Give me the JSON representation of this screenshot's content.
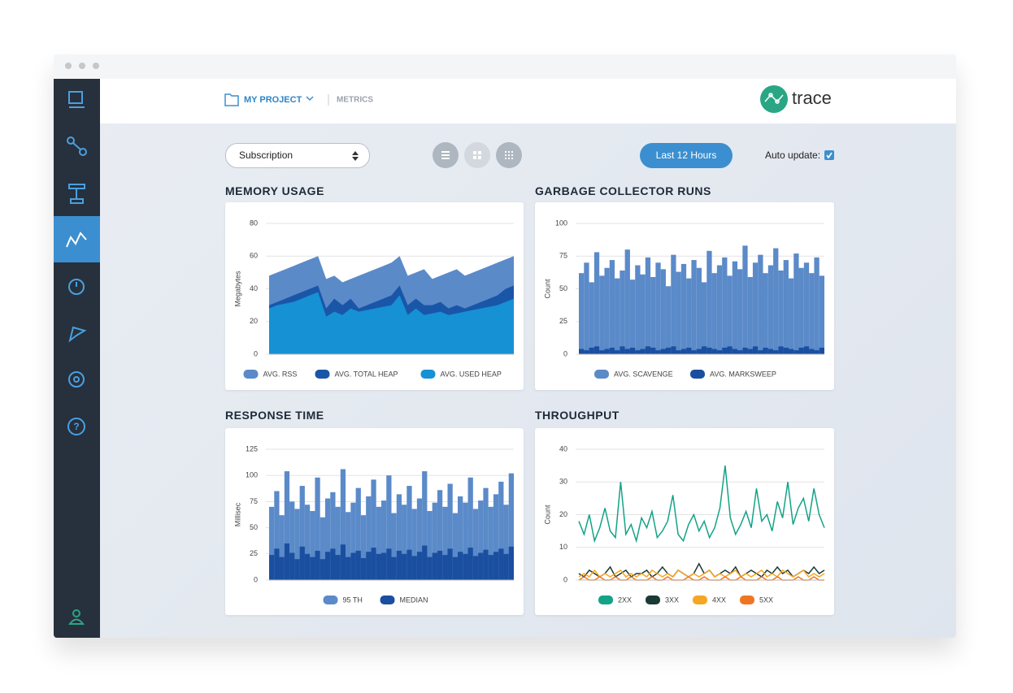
{
  "header": {
    "project": "MY PROJECT",
    "page": "METRICS",
    "brand": "trace"
  },
  "toolbar": {
    "select": "Subscription",
    "range_button": "Last 12 Hours",
    "auto_update": "Auto update:"
  },
  "chart_data": [
    {
      "type": "area",
      "title": "MEMORY USAGE",
      "y_label": "Megabytes",
      "ylim": [
        0,
        80
      ],
      "yticks": [
        0,
        20,
        40,
        60,
        80
      ],
      "grid": true,
      "series": [
        {
          "name": "AVG. RSS",
          "color": "#5b8ac9",
          "values": [
            48,
            50,
            52,
            54,
            56,
            58,
            60,
            46,
            48,
            44,
            46,
            48,
            50,
            52,
            54,
            56,
            60,
            48,
            50,
            52,
            46,
            48,
            50,
            52,
            48,
            50,
            52,
            54,
            56,
            58,
            60
          ]
        },
        {
          "name": "AVG. TOTAL HEAP",
          "color": "#1a56a8",
          "values": [
            30,
            32,
            34,
            36,
            38,
            40,
            42,
            28,
            34,
            30,
            34,
            28,
            30,
            32,
            34,
            36,
            42,
            30,
            34,
            30,
            30,
            32,
            28,
            30,
            28,
            30,
            32,
            34,
            36,
            40,
            42
          ]
        },
        {
          "name": "AVG. USED HEAP",
          "color": "#1591d4",
          "values": [
            28,
            30,
            31,
            32,
            34,
            36,
            38,
            23,
            26,
            24,
            28,
            26,
            27,
            28,
            29,
            30,
            36,
            24,
            28,
            24,
            25,
            26,
            24,
            25,
            26,
            27,
            28,
            29,
            30,
            32,
            34
          ]
        }
      ]
    },
    {
      "type": "bar",
      "title": "GARBAGE COLLECTOR RUNS",
      "y_label": "Count",
      "ylim": [
        0,
        100
      ],
      "yticks": [
        0,
        25,
        50,
        75,
        100
      ],
      "grid": true,
      "series": [
        {
          "name": "AVG. SCAVENGE",
          "color": "#5b8ac9",
          "values": [
            62,
            70,
            55,
            78,
            60,
            66,
            72,
            58,
            64,
            80,
            57,
            68,
            61,
            74,
            59,
            70,
            65,
            52,
            76,
            63,
            69,
            58,
            72,
            66,
            55,
            79,
            62,
            68,
            74,
            60,
            71,
            65,
            83,
            59,
            70,
            76,
            62,
            68,
            81,
            64,
            72,
            58,
            77,
            66,
            70,
            62,
            74,
            60
          ]
        },
        {
          "name": "AVG. MARKSWEEP",
          "color": "#1a4fa0",
          "values": [
            4,
            3,
            5,
            6,
            3,
            4,
            5,
            3,
            6,
            4,
            5,
            3,
            4,
            6,
            5,
            3,
            4,
            5,
            6,
            3,
            4,
            5,
            3,
            4,
            6,
            5,
            4,
            3,
            5,
            6,
            4,
            3,
            5,
            4,
            6,
            3,
            5,
            4,
            3,
            6,
            5,
            4,
            3,
            5,
            6,
            4,
            3,
            5
          ]
        }
      ]
    },
    {
      "type": "bar",
      "title": "RESPONSE TIME",
      "y_label": "Millisec",
      "ylim": [
        0,
        125
      ],
      "yticks": [
        0,
        25,
        50,
        75,
        100,
        125
      ],
      "grid": true,
      "series": [
        {
          "name": "95 TH",
          "color": "#5b8ac9",
          "values": [
            70,
            85,
            62,
            104,
            75,
            68,
            90,
            72,
            66,
            98,
            60,
            78,
            84,
            70,
            106,
            65,
            74,
            88,
            62,
            80,
            96,
            70,
            76,
            100,
            64,
            82,
            72,
            90,
            68,
            78,
            104,
            66,
            74,
            86,
            70,
            92,
            64,
            80,
            74,
            98,
            68,
            76,
            88,
            70,
            82,
            94,
            72,
            102
          ]
        },
        {
          "name": "MEDIAN",
          "color": "#1a4fa0",
          "values": [
            24,
            30,
            22,
            35,
            26,
            20,
            32,
            25,
            22,
            28,
            20,
            27,
            30,
            24,
            34,
            22,
            26,
            28,
            21,
            27,
            31,
            25,
            26,
            30,
            22,
            28,
            25,
            29,
            23,
            27,
            33,
            22,
            26,
            28,
            24,
            30,
            22,
            27,
            25,
            31,
            23,
            26,
            29,
            24,
            27,
            30,
            25,
            32
          ]
        }
      ]
    },
    {
      "type": "line",
      "title": "THROUGHPUT",
      "y_label": "Count",
      "ylim": [
        0,
        40
      ],
      "yticks": [
        0,
        10,
        20,
        30,
        40
      ],
      "grid": true,
      "series": [
        {
          "name": "2XX",
          "color": "#13a386",
          "values": [
            18,
            14,
            20,
            12,
            16,
            22,
            15,
            13,
            30,
            14,
            17,
            12,
            19,
            16,
            21,
            13,
            15,
            18,
            26,
            14,
            12,
            17,
            20,
            15,
            18,
            13,
            16,
            22,
            35,
            19,
            14,
            17,
            21,
            16,
            28,
            18,
            20,
            15,
            24,
            19,
            30,
            17,
            22,
            25,
            18,
            28,
            20,
            16
          ]
        },
        {
          "name": "3XX",
          "color": "#1c3a34",
          "values": [
            2,
            1,
            3,
            2,
            1,
            2,
            4,
            1,
            2,
            3,
            1,
            2,
            2,
            3,
            1,
            2,
            4,
            2,
            1,
            3,
            2,
            1,
            2,
            5,
            2,
            3,
            1,
            2,
            3,
            2,
            4,
            1,
            2,
            3,
            2,
            1,
            3,
            2,
            4,
            2,
            3,
            1,
            2,
            3,
            2,
            4,
            2,
            3
          ]
        },
        {
          "name": "4XX",
          "color": "#f5a623",
          "values": [
            1,
            2,
            1,
            3,
            1,
            2,
            1,
            2,
            3,
            1,
            2,
            1,
            2,
            1,
            3,
            2,
            1,
            2,
            1,
            3,
            2,
            1,
            2,
            1,
            2,
            3,
            1,
            2,
            1,
            2,
            3,
            1,
            2,
            1,
            2,
            3,
            1,
            2,
            1,
            3,
            2,
            1,
            2,
            3,
            1,
            2,
            1,
            2
          ]
        },
        {
          "name": "5XX",
          "color": "#f07522",
          "values": [
            0,
            1,
            0,
            0,
            1,
            0,
            0,
            1,
            0,
            0,
            1,
            0,
            0,
            0,
            1,
            0,
            0,
            1,
            0,
            0,
            0,
            1,
            0,
            0,
            1,
            0,
            0,
            0,
            1,
            0,
            0,
            1,
            0,
            0,
            0,
            1,
            0,
            0,
            1,
            0,
            0,
            0,
            1,
            0,
            0,
            1,
            0,
            0
          ]
        }
      ]
    }
  ]
}
